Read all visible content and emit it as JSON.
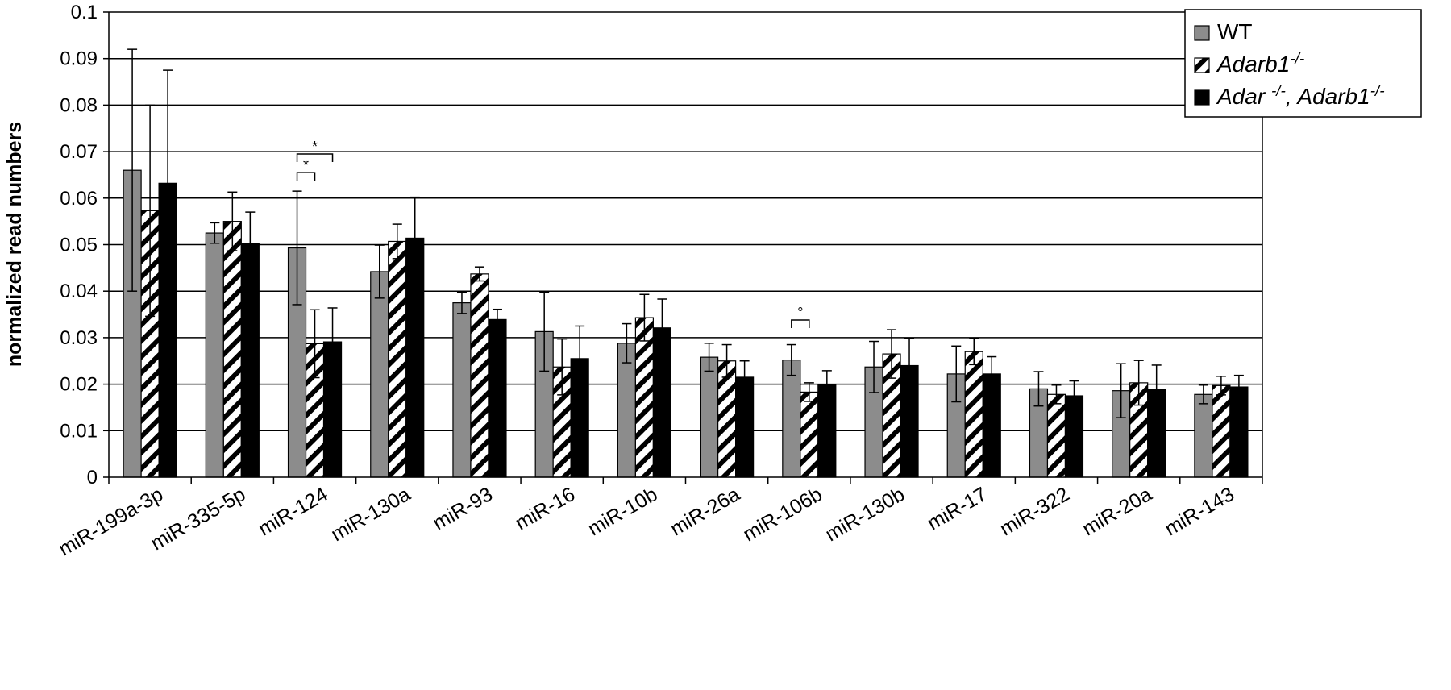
{
  "chart_data": {
    "type": "bar",
    "ylabel": "normalized read numbers",
    "ylim": [
      0,
      0.1
    ],
    "yticks": [
      "0",
      "0.01",
      "0.02",
      "0.03",
      "0.04",
      "0.05",
      "0.06",
      "0.07",
      "0.08",
      "0.09",
      "0.1"
    ],
    "grid": true,
    "legend_position": "top-right",
    "categories": [
      "miR-199a-3p",
      "miR-335-5p",
      "miR-124",
      "miR-130a",
      "miR-93",
      "miR-16",
      "miR-10b",
      "miR-26a",
      "miR-106b",
      "miR-130b",
      "miR-17",
      "miR-322",
      "miR-20a",
      "miR-143"
    ],
    "series": [
      {
        "name": "WT",
        "legend_italic": false,
        "pattern": "gray",
        "values": [
          0.066,
          0.0525,
          0.0493,
          0.0442,
          0.0375,
          0.0313,
          0.0288,
          0.0258,
          0.0252,
          0.0237,
          0.0222,
          0.019,
          0.0186,
          0.0178
        ],
        "errors": [
          0.026,
          0.0022,
          0.0122,
          0.0057,
          0.0023,
          0.0085,
          0.0042,
          0.003,
          0.0033,
          0.0055,
          0.006,
          0.0037,
          0.0058,
          0.002
        ]
      },
      {
        "name": "Adarb1",
        "name_sup": "-/-",
        "legend_italic": true,
        "pattern": "hatch",
        "values": [
          0.0573,
          0.055,
          0.0287,
          0.0507,
          0.0437,
          0.0237,
          0.0343,
          0.025,
          0.0183,
          0.0265,
          0.027,
          0.0178,
          0.0203,
          0.0197
        ],
        "errors": [
          0.0227,
          0.0063,
          0.0073,
          0.0037,
          0.0015,
          0.006,
          0.005,
          0.0035,
          0.002,
          0.0052,
          0.0028,
          0.002,
          0.0048,
          0.002
        ]
      },
      {
        "name": "Adar -/-, Adarb1-/-",
        "legend_parts": [
          "Adar ",
          "-/-",
          ", Adarb1",
          "-/-"
        ],
        "legend_italic": true,
        "pattern": "black",
        "values": [
          0.0632,
          0.0502,
          0.0291,
          0.0514,
          0.0339,
          0.0255,
          0.0321,
          0.0215,
          0.0199,
          0.024,
          0.0222,
          0.0175,
          0.0189,
          0.0194
        ],
        "errors": [
          0.0243,
          0.0068,
          0.0073,
          0.0088,
          0.0022,
          0.007,
          0.0062,
          0.0035,
          0.003,
          0.0058,
          0.0037,
          0.0032,
          0.0052,
          0.0025
        ]
      }
    ],
    "significance": [
      {
        "label": "*",
        "category": "miR-124",
        "from_series": 0,
        "to_series": 1,
        "y": 0.0655
      },
      {
        "label": "*",
        "category": "miR-124",
        "from_series": 0,
        "to_series": 2,
        "y": 0.0695
      },
      {
        "label": "°",
        "category": "miR-106b",
        "from_series": 0,
        "to_series": 1,
        "y": 0.0338
      }
    ],
    "colors": {
      "wt": "#8c8c8c",
      "black": "#000000",
      "grid": "#000000"
    }
  }
}
